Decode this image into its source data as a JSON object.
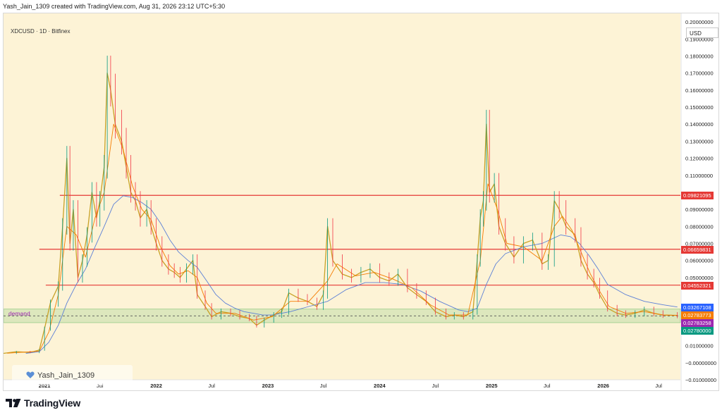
{
  "header": {
    "credit": "Yash_Jain_1309 created with TradingView.com, Aug 31, 2026 23:12 UTC+5:30",
    "symbol": "XDCUSD · 1D · Bitfinex",
    "currency": "USD"
  },
  "watermark": {
    "text": "Yash_Jain_1309",
    "icon": "heart-icon",
    "icon_color": "#5b8fd6"
  },
  "brand": {
    "name": "TradingView",
    "icon": "tradingview-logo-icon"
  },
  "zone_label": "demand",
  "price_tags": [
    {
      "value": 0.09821095,
      "text": "0.09821095",
      "color": "#e53935"
    },
    {
      "value": 0.06659831,
      "text": "0.06659831",
      "color": "#e53935"
    },
    {
      "value": 0.04552321,
      "text": "0.04552321",
      "color": "#e53935"
    },
    {
      "value": 0.03267108,
      "text": "0.03267108",
      "color": "#2962ff"
    },
    {
      "value": 0.02783773,
      "text": "0.02783773",
      "color": "#f57c00"
    },
    {
      "value": 0.02783258,
      "text": "0.02783258",
      "color": "#9c27b0"
    },
    {
      "value": 0.0278,
      "text": "0.02780000",
      "color": "#089981"
    }
  ],
  "chart_data": {
    "type": "line",
    "title": "XDCUSD · 1D · Bitfinex",
    "xlabel": "",
    "ylabel": "",
    "ylim": [
      -0.01,
      0.205
    ],
    "xlim": [
      "2020-08-20",
      "2026-09-10"
    ],
    "grid": false,
    "legend": "none",
    "background": "#fdf3d6",
    "y_ticks": [
      {
        "value": 0.2,
        "label": "0.20000000"
      },
      {
        "value": 0.19,
        "label": "0.19000000"
      },
      {
        "value": 0.18,
        "label": "0.18000000"
      },
      {
        "value": 0.17,
        "label": "0.17000000"
      },
      {
        "value": 0.16,
        "label": "0.16000000"
      },
      {
        "value": 0.15,
        "label": "0.15000000"
      },
      {
        "value": 0.14,
        "label": "0.14000000"
      },
      {
        "value": 0.13,
        "label": "0.13000000"
      },
      {
        "value": 0.12,
        "label": "0.12000000"
      },
      {
        "value": 0.11,
        "label": "0.11000000"
      },
      {
        "value": 0.09,
        "label": "0.09000000"
      },
      {
        "value": 0.08,
        "label": "0.08000000"
      },
      {
        "value": 0.07,
        "label": "0.07000000"
      },
      {
        "value": 0.06,
        "label": "0.06000000"
      },
      {
        "value": 0.05,
        "label": "0.05000000"
      },
      {
        "value": 0.02,
        "label": "0.02000000"
      },
      {
        "value": 0.01,
        "label": "0.01000000"
      },
      {
        "value": 0.0,
        "label": "−0.00000000"
      },
      {
        "value": -0.01,
        "label": "−0.01000000"
      }
    ],
    "x_ticks": [
      {
        "date": "2021-01-01",
        "label": "2021",
        "bold": true
      },
      {
        "date": "2021-07-01",
        "label": "Jul",
        "bold": false
      },
      {
        "date": "2022-01-01",
        "label": "2022",
        "bold": true
      },
      {
        "date": "2022-07-01",
        "label": "Jul",
        "bold": false
      },
      {
        "date": "2023-01-01",
        "label": "2023",
        "bold": true
      },
      {
        "date": "2023-07-01",
        "label": "Jul",
        "bold": false
      },
      {
        "date": "2024-01-01",
        "label": "2024",
        "bold": true
      },
      {
        "date": "2024-07-01",
        "label": "Jul",
        "bold": false
      },
      {
        "date": "2025-01-01",
        "label": "2025",
        "bold": true
      },
      {
        "date": "2025-07-01",
        "label": "Jul",
        "bold": false
      },
      {
        "date": "2026-01-01",
        "label": "2026",
        "bold": true
      },
      {
        "date": "2026-07-01",
        "label": "Jul",
        "bold": false
      }
    ],
    "levels": [
      {
        "value": 0.09821095,
        "start": "2021-02-20",
        "color": "#e53935"
      },
      {
        "value": 0.06659831,
        "start": "2020-12-15",
        "color": "#e53935"
      },
      {
        "value": 0.04552321,
        "start": "2021-01-05",
        "color": "#e53935"
      }
    ],
    "zone": {
      "name": "demand",
      "low": 0.0235,
      "high": 0.0315,
      "mid": 0.0275,
      "color": "#4caf50"
    },
    "series": [
      {
        "name": "",
        "color": "#c9a227",
        "kind": "price",
        "points": [
          [
            "2020-08-20",
            0.0055
          ],
          [
            "2020-10-01",
            0.0065
          ],
          [
            "2020-11-15",
            0.006
          ],
          [
            "2020-12-15",
            0.0075
          ],
          [
            "2021-01-01",
            0.02
          ],
          [
            "2021-01-20",
            0.035
          ],
          [
            "2021-02-15",
            0.045
          ],
          [
            "2021-03-01",
            0.08
          ],
          [
            "2021-03-15",
            0.12
          ],
          [
            "2021-03-25",
            0.07
          ],
          [
            "2021-04-05",
            0.09
          ],
          [
            "2021-04-20",
            0.05
          ],
          [
            "2021-05-05",
            0.06
          ],
          [
            "2021-05-20",
            0.075
          ],
          [
            "2021-06-05",
            0.1
          ],
          [
            "2021-06-20",
            0.085
          ],
          [
            "2021-07-01",
            0.095
          ],
          [
            "2021-07-15",
            0.115
          ],
          [
            "2021-07-25",
            0.17
          ],
          [
            "2021-08-05",
            0.16
          ],
          [
            "2021-08-20",
            0.14
          ],
          [
            "2021-09-10",
            0.13
          ],
          [
            "2021-09-25",
            0.115
          ],
          [
            "2021-10-10",
            0.1
          ],
          [
            "2021-10-25",
            0.095
          ],
          [
            "2021-11-10",
            0.085
          ],
          [
            "2021-12-01",
            0.09
          ],
          [
            "2021-12-15",
            0.08
          ],
          [
            "2022-01-01",
            0.07
          ],
          [
            "2022-01-20",
            0.06
          ],
          [
            "2022-02-10",
            0.055
          ],
          [
            "2022-03-01",
            0.053
          ],
          [
            "2022-03-20",
            0.05
          ],
          [
            "2022-04-10",
            0.055
          ],
          [
            "2022-05-01",
            0.06
          ],
          [
            "2022-05-15",
            0.04
          ],
          [
            "2022-06-10",
            0.033
          ],
          [
            "2022-07-01",
            0.027
          ],
          [
            "2022-08-01",
            0.03
          ],
          [
            "2022-09-01",
            0.029
          ],
          [
            "2022-10-01",
            0.027
          ],
          [
            "2022-11-01",
            0.026
          ],
          [
            "2022-11-25",
            0.022
          ],
          [
            "2022-12-20",
            0.025
          ],
          [
            "2023-01-20",
            0.028
          ],
          [
            "2023-02-15",
            0.03
          ],
          [
            "2023-03-10",
            0.041
          ],
          [
            "2023-04-10",
            0.038
          ],
          [
            "2023-05-10",
            0.036
          ],
          [
            "2023-06-10",
            0.033
          ],
          [
            "2023-07-01",
            0.04
          ],
          [
            "2023-07-15",
            0.08
          ],
          [
            "2023-08-01",
            0.06
          ],
          [
            "2023-09-01",
            0.052
          ],
          [
            "2023-10-01",
            0.05
          ],
          [
            "2023-11-01",
            0.053
          ],
          [
            "2023-12-01",
            0.055
          ],
          [
            "2024-01-01",
            0.05
          ],
          [
            "2024-02-01",
            0.048
          ],
          [
            "2024-03-01",
            0.052
          ],
          [
            "2024-04-01",
            0.044
          ],
          [
            "2024-05-01",
            0.04
          ],
          [
            "2024-06-01",
            0.036
          ],
          [
            "2024-07-01",
            0.03
          ],
          [
            "2024-08-05",
            0.027
          ],
          [
            "2024-09-01",
            0.028
          ],
          [
            "2024-10-01",
            0.027
          ],
          [
            "2024-11-01",
            0.03
          ],
          [
            "2024-11-15",
            0.06
          ],
          [
            "2024-11-25",
            0.085
          ],
          [
            "2024-12-05",
            0.095
          ],
          [
            "2024-12-15",
            0.14
          ],
          [
            "2024-12-25",
            0.1
          ],
          [
            "2025-01-10",
            0.105
          ],
          [
            "2025-01-25",
            0.08
          ],
          [
            "2025-02-15",
            0.07
          ],
          [
            "2025-03-15",
            0.062
          ],
          [
            "2025-04-15",
            0.07
          ],
          [
            "2025-05-15",
            0.072
          ],
          [
            "2025-06-15",
            0.058
          ],
          [
            "2025-07-05",
            0.06
          ],
          [
            "2025-07-25",
            0.095
          ],
          [
            "2025-08-10",
            0.09
          ],
          [
            "2025-09-01",
            0.08
          ],
          [
            "2025-10-01",
            0.075
          ],
          [
            "2025-10-20",
            0.06
          ],
          [
            "2025-11-10",
            0.052
          ],
          [
            "2025-12-01",
            0.047
          ],
          [
            "2025-12-20",
            0.04
          ],
          [
            "2026-01-15",
            0.032
          ],
          [
            "2026-02-15",
            0.029
          ],
          [
            "2026-03-15",
            0.028
          ],
          [
            "2026-04-15",
            0.029
          ],
          [
            "2026-05-15",
            0.031
          ],
          [
            "2026-06-15",
            0.029
          ],
          [
            "2026-07-15",
            0.028
          ],
          [
            "2026-08-31",
            0.0278
          ]
        ]
      },
      {
        "name": "",
        "color": "#5b7fd6",
        "kind": "ma",
        "points": [
          [
            "2020-11-01",
            0.0055
          ],
          [
            "2020-12-15",
            0.0065
          ],
          [
            "2021-01-15",
            0.012
          ],
          [
            "2021-02-15",
            0.022
          ],
          [
            "2021-03-15",
            0.035
          ],
          [
            "2021-04-15",
            0.046
          ],
          [
            "2021-05-15",
            0.055
          ],
          [
            "2021-06-15",
            0.068
          ],
          [
            "2021-07-15",
            0.08
          ],
          [
            "2021-08-15",
            0.093
          ],
          [
            "2021-09-15",
            0.098
          ],
          [
            "2021-10-15",
            0.097
          ],
          [
            "2021-11-15",
            0.094
          ],
          [
            "2021-12-15",
            0.09
          ],
          [
            "2022-01-15",
            0.082
          ],
          [
            "2022-02-15",
            0.072
          ],
          [
            "2022-03-15",
            0.065
          ],
          [
            "2022-04-15",
            0.06
          ],
          [
            "2022-05-15",
            0.056
          ],
          [
            "2022-06-15",
            0.048
          ],
          [
            "2022-07-15",
            0.04
          ],
          [
            "2022-08-15",
            0.035
          ],
          [
            "2022-09-15",
            0.032
          ],
          [
            "2022-10-15",
            0.03
          ],
          [
            "2022-11-15",
            0.029
          ],
          [
            "2022-12-15",
            0.028
          ],
          [
            "2023-01-15",
            0.028
          ],
          [
            "2023-03-15",
            0.03
          ],
          [
            "2023-05-15",
            0.033
          ],
          [
            "2023-07-15",
            0.036
          ],
          [
            "2023-09-15",
            0.043
          ],
          [
            "2023-11-15",
            0.047
          ],
          [
            "2024-01-15",
            0.047
          ],
          [
            "2024-03-15",
            0.046
          ],
          [
            "2024-05-15",
            0.042
          ],
          [
            "2024-07-15",
            0.036
          ],
          [
            "2024-09-15",
            0.031
          ],
          [
            "2024-10-15",
            0.03
          ],
          [
            "2024-11-15",
            0.032
          ],
          [
            "2024-12-15",
            0.046
          ],
          [
            "2025-01-15",
            0.058
          ],
          [
            "2025-02-15",
            0.064
          ],
          [
            "2025-04-15",
            0.068
          ],
          [
            "2025-06-15",
            0.07
          ],
          [
            "2025-08-15",
            0.075
          ],
          [
            "2025-09-15",
            0.074
          ],
          [
            "2025-10-15",
            0.07
          ],
          [
            "2025-11-15",
            0.063
          ],
          [
            "2025-12-15",
            0.055
          ],
          [
            "2026-01-15",
            0.046
          ],
          [
            "2026-03-15",
            0.04
          ],
          [
            "2026-05-15",
            0.036
          ],
          [
            "2026-07-15",
            0.034
          ],
          [
            "2026-08-31",
            0.0327
          ]
        ]
      },
      {
        "name": "",
        "color": "#f57c00",
        "kind": "ma",
        "points": [
          [
            "2020-09-01",
            0.0056
          ],
          [
            "2020-12-15",
            0.0068
          ],
          [
            "2021-01-15",
            0.018
          ],
          [
            "2021-02-15",
            0.04
          ],
          [
            "2021-03-15",
            0.08
          ],
          [
            "2021-04-15",
            0.075
          ],
          [
            "2021-05-15",
            0.062
          ],
          [
            "2021-06-15",
            0.085
          ],
          [
            "2021-07-15",
            0.1
          ],
          [
            "2021-08-15",
            0.14
          ],
          [
            "2021-09-15",
            0.125
          ],
          [
            "2021-10-15",
            0.104
          ],
          [
            "2021-11-15",
            0.09
          ],
          [
            "2021-12-15",
            0.084
          ],
          [
            "2022-01-15",
            0.068
          ],
          [
            "2022-02-15",
            0.057
          ],
          [
            "2022-03-15",
            0.052
          ],
          [
            "2022-04-15",
            0.054
          ],
          [
            "2022-05-15",
            0.05
          ],
          [
            "2022-06-15",
            0.035
          ],
          [
            "2022-07-15",
            0.029
          ],
          [
            "2022-09-15",
            0.029
          ],
          [
            "2022-11-15",
            0.025
          ],
          [
            "2023-01-15",
            0.027
          ],
          [
            "2023-03-15",
            0.036
          ],
          [
            "2023-05-15",
            0.036
          ],
          [
            "2023-07-15",
            0.048
          ],
          [
            "2023-08-15",
            0.058
          ],
          [
            "2023-10-15",
            0.051
          ],
          [
            "2023-12-15",
            0.053
          ],
          [
            "2024-02-15",
            0.049
          ],
          [
            "2024-04-15",
            0.044
          ],
          [
            "2024-06-15",
            0.034
          ],
          [
            "2024-08-15",
            0.028
          ],
          [
            "2024-10-15",
            0.028
          ],
          [
            "2024-11-25",
            0.06
          ],
          [
            "2024-12-20",
            0.105
          ],
          [
            "2025-01-20",
            0.09
          ],
          [
            "2025-02-20",
            0.07
          ],
          [
            "2025-04-15",
            0.068
          ],
          [
            "2025-06-15",
            0.06
          ],
          [
            "2025-07-25",
            0.08
          ],
          [
            "2025-08-20",
            0.086
          ],
          [
            "2025-09-20",
            0.078
          ],
          [
            "2025-10-20",
            0.065
          ],
          [
            "2025-11-20",
            0.052
          ],
          [
            "2025-12-20",
            0.042
          ],
          [
            "2026-01-20",
            0.033
          ],
          [
            "2026-03-15",
            0.029
          ],
          [
            "2026-05-15",
            0.03
          ],
          [
            "2026-07-15",
            0.028
          ],
          [
            "2026-08-31",
            0.0278
          ]
        ]
      }
    ]
  }
}
